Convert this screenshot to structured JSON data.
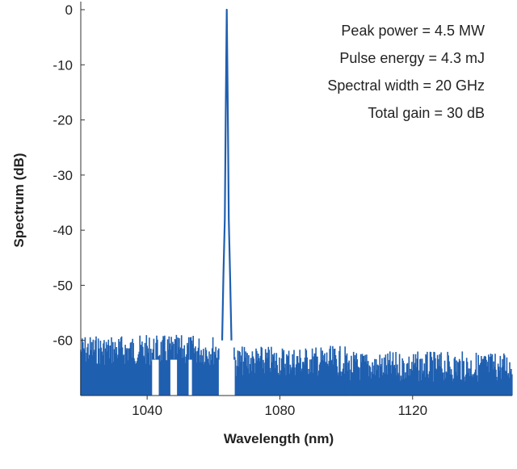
{
  "chart_data": {
    "type": "line",
    "title": "",
    "xlabel": "Wavelength (nm)",
    "ylabel": "Spectrum (dB)",
    "xlim": [
      1020,
      1150
    ],
    "ylim": [
      -70,
      0
    ],
    "xticks": [
      1040,
      1080,
      1120
    ],
    "yticks": [
      0,
      -10,
      -20,
      -30,
      -40,
      -50,
      -60
    ],
    "grid": false,
    "line_color": "#1f5fb0",
    "annotations": [
      "Peak power = 4.5 MW",
      "Pulse energy = 4.3 mJ",
      "Spectral width = 20 GHz",
      "Total gain = 30 dB"
    ],
    "series": [
      {
        "peak": {
          "x": 1064,
          "y": 0
        },
        "peak_points": [
          {
            "x": 1062.6,
            "y": -60
          },
          {
            "x": 1063.0,
            "y": -48
          },
          {
            "x": 1063.4,
            "y": -38
          },
          {
            "x": 1063.7,
            "y": -18
          },
          {
            "x": 1064.0,
            "y": 0
          },
          {
            "x": 1064.3,
            "y": -18
          },
          {
            "x": 1064.6,
            "y": -38
          },
          {
            "x": 1065.0,
            "y": -48
          },
          {
            "x": 1065.4,
            "y": -60
          }
        ],
        "noise_floor_segments": [
          {
            "x_start": 1020,
            "x_end": 1062,
            "y_min": -70,
            "y_max": -59
          },
          {
            "x_start": 1066,
            "x_end": 1100,
            "y_min": -70,
            "y_max": -61
          },
          {
            "x_start": 1100,
            "x_end": 1150,
            "y_min": -70,
            "y_max": -62
          }
        ]
      }
    ]
  }
}
